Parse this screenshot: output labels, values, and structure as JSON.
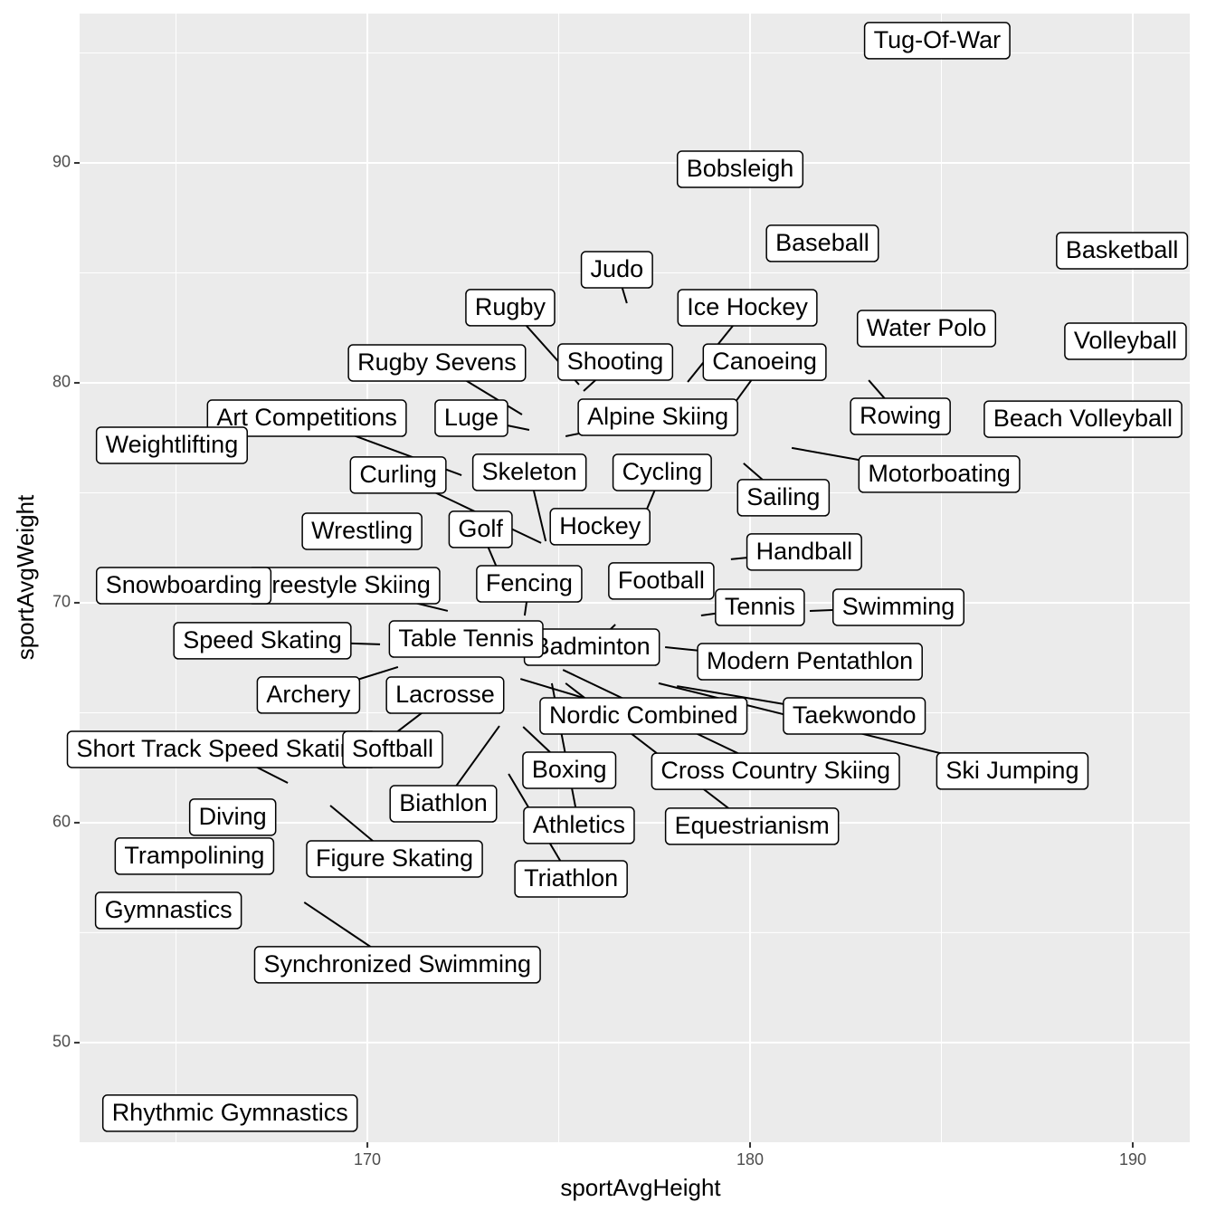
{
  "chart_data": {
    "type": "scatter",
    "x_label": "sportAvgHeight",
    "y_label": "sportAvgWeight",
    "xlim": [
      162.48,
      191.49
    ],
    "xticks": [
      170,
      180,
      190
    ],
    "ylim": [
      45.47,
      96.79
    ],
    "yticks": [
      50,
      60,
      70,
      80,
      90
    ],
    "grid": true,
    "labels": [
      "Tug-Of-War",
      "Bobsleigh",
      "Baseball",
      "Basketball",
      "Judo",
      "Rugby",
      "Ice Hockey",
      "Canoeing",
      "Water Polo",
      "Volleyball",
      "Rugby Sevens",
      "Shooting",
      "Luge",
      "Alpine Skiing",
      "Rowing",
      "Beach Volleyball",
      "Art Competitions",
      "Weightlifting",
      "Motorboating",
      "Curling",
      "Skeleton",
      "Cycling",
      "Sailing",
      "Hockey",
      "Wrestling",
      "Golf",
      "Handball",
      "Fencing",
      "Football",
      "Freestyle Skiing",
      "Snowboarding",
      "Tennis",
      "Swimming",
      "Badminton",
      "Speed Skating",
      "Table Tennis",
      "Modern Pentathlon",
      "Archery",
      "Nordic Combined",
      "Athletics",
      "Equestrianism",
      "Cross Country Skiing",
      "Taekwondo",
      "Ski Jumping",
      "Lacrosse",
      "Biathlon",
      "Boxing",
      "Short Track Speed Skating",
      "Softball",
      "Triathlon",
      "Diving",
      "Figure Skating",
      "Trampolining",
      "Gymnastics",
      "Synchronized Swimming",
      "Rhythmic Gymnastics"
    ],
    "x": [
      184.89,
      179.74,
      181.89,
      189.72,
      176.78,
      175.53,
      178.37,
      179.6,
      184.61,
      189.81,
      174.04,
      175.65,
      174.23,
      175.18,
      183.1,
      188.7,
      172.46,
      164.89,
      181.09,
      174.54,
      174.66,
      177.23,
      179.83,
      176.08,
      169.86,
      173.36,
      179.5,
      174.11,
      177.68,
      172.1,
      165.2,
      178.72,
      181.56,
      176.48,
      170.33,
      172.58,
      177.78,
      170.8,
      174.0,
      174.82,
      175.18,
      175.11,
      178.09,
      177.61,
      170.73,
      173.45,
      174.07,
      167.92,
      170.66,
      173.69,
      166.48,
      169.03,
      165.48,
      164.8,
      168.35,
      166.41
    ],
    "values": [
      95.56,
      89.71,
      86.34,
      86.01,
      83.62,
      79.92,
      80.04,
      79.09,
      82.47,
      81.89,
      78.56,
      79.63,
      77.86,
      77.57,
      80.12,
      78.35,
      75.8,
      77.16,
      77.04,
      72.72,
      72.8,
      73.95,
      76.34,
      73.46,
      73.25,
      71.69,
      71.98,
      69.42,
      70.99,
      69.63,
      70.78,
      69.42,
      69.63,
      69.01,
      68.11,
      68.35,
      67.98,
      67.08,
      66.54,
      66.34,
      66.34,
      66.95,
      66.21,
      66.34,
      64.07,
      64.4,
      64.36,
      61.81,
      63.33,
      62.22,
      60.25,
      60.78,
      58.48,
      56.01,
      56.38,
      46.79
    ]
  }
}
